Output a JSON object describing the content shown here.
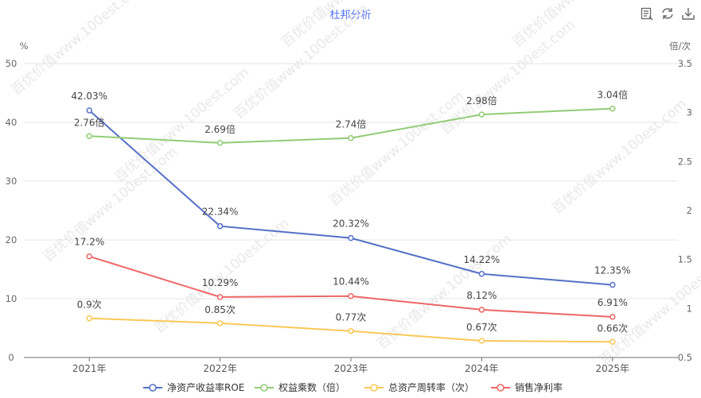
{
  "title": "杜邦分析",
  "toolbar": {
    "data_view_icon": "data-view-icon",
    "restore_icon": "restore-icon",
    "save_image_icon": "download-icon"
  },
  "watermark": "百优价值www.100est.com",
  "chart_data": {
    "type": "line",
    "categories": [
      "2021年",
      "2022年",
      "2023年",
      "2024年",
      "2025年"
    ],
    "y_left": {
      "unit": "%",
      "ylim": [
        0,
        50
      ],
      "ticks": [
        "0",
        "10",
        "20",
        "30",
        "40",
        "50"
      ]
    },
    "y_right": {
      "unit": "倍/次",
      "ylim": [
        0.5,
        3.5
      ],
      "ticks": [
        "0.5",
        "1",
        "1.5",
        "2",
        "2.5",
        "3",
        "3.5"
      ]
    },
    "series": [
      {
        "name": "净资产收益率ROE",
        "axis": "left",
        "color": "#5470c6",
        "values": [
          42.03,
          22.34,
          20.32,
          14.22,
          12.35
        ],
        "labels": [
          "42.03%",
          "22.34%",
          "20.32%",
          "14.22%",
          "12.35%"
        ]
      },
      {
        "name": "权益乘数（倍）",
        "axis": "right",
        "color": "#91cc75",
        "values": [
          2.76,
          2.69,
          2.74,
          2.98,
          3.04
        ],
        "labels": [
          "2.76倍",
          "2.69倍",
          "2.74倍",
          "2.98倍",
          "3.04倍"
        ]
      },
      {
        "name": "总资产周转率（次）",
        "axis": "right",
        "color": "#fac858",
        "values": [
          0.9,
          0.85,
          0.77,
          0.67,
          0.66
        ],
        "labels": [
          "0.9次",
          "0.85次",
          "0.77次",
          "0.67次",
          "0.66次"
        ]
      },
      {
        "name": "销售净利率",
        "axis": "left",
        "color": "#ee6666",
        "values": [
          17.2,
          10.29,
          10.44,
          8.12,
          6.91
        ],
        "labels": [
          "17.2%",
          "10.29%",
          "10.44%",
          "8.12%",
          "6.91%"
        ]
      }
    ],
    "grid": true,
    "legend": "bottom"
  }
}
